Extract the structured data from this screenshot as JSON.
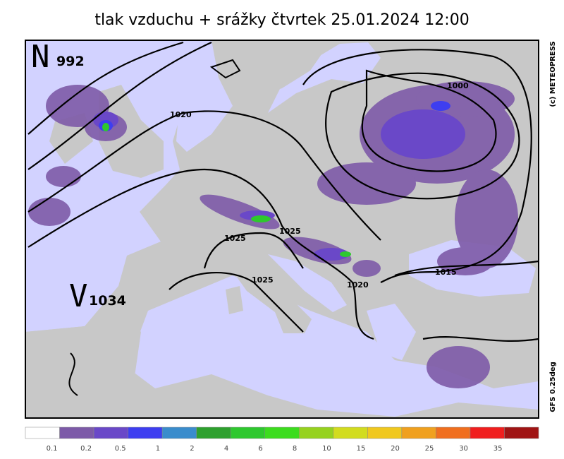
{
  "title": "tlak vzduchu + srážky čtvrtek 25.01.2024 12:00",
  "map": {
    "pressure_centers": [
      {
        "letter": "N",
        "value": "992"
      },
      {
        "letter": "V",
        "value": "1034"
      }
    ],
    "isobar_labels": [
      "1020",
      "1025",
      "1025",
      "1025",
      "1020",
      "1000",
      "1015"
    ],
    "credit": "(c) METEOPRESS",
    "model": "GFS 0.25deg"
  },
  "legend": {
    "labels": [
      "0.1",
      "0.2",
      "0.5",
      "1",
      "2",
      "4",
      "6",
      "8",
      "10",
      "15",
      "20",
      "25",
      "30",
      "35"
    ],
    "colors": [
      "#ffffff",
      "#7d5aa8",
      "#6a48c8",
      "#3e3ef0",
      "#3a8ccc",
      "#2ea02e",
      "#2ec82e",
      "#3cdc1e",
      "#96d21e",
      "#d2dc1e",
      "#f0c81e",
      "#f0a01e",
      "#f06e1e",
      "#f01e1e",
      "#a01414"
    ]
  }
}
